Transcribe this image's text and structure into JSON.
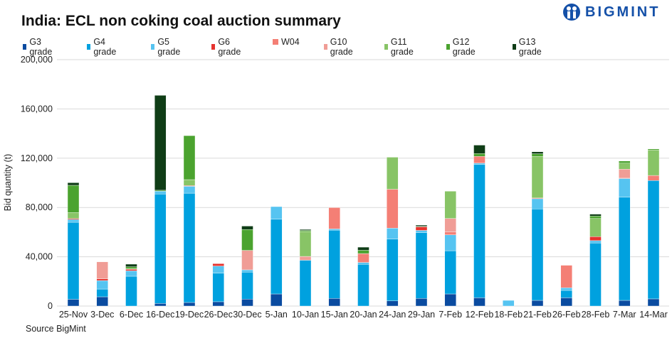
{
  "title": "India: ECL non coking coal auction summary",
  "logo": {
    "text": "BIGMINT"
  },
  "source": "Source BigMint",
  "chart_data": {
    "type": "bar",
    "stacked": true,
    "title": "India: ECL non coking coal auction summary",
    "ylabel": "Bid quantity (t)",
    "xlabel": "",
    "ylim": [
      0,
      200000
    ],
    "yticks": [
      0,
      40000,
      80000,
      120000,
      160000,
      200000
    ],
    "ytick_labels": [
      "0",
      "40,000",
      "80,000",
      "120,000",
      "160,000",
      "200,000"
    ],
    "grid": true,
    "legend_position": "top",
    "categories": [
      "25-Nov",
      "3-Dec",
      "6-Dec",
      "16-Dec",
      "19-Dec",
      "26-Dec",
      "30-Dec",
      "5-Jan",
      "10-Jan",
      "15-Jan",
      "20-Jan",
      "24-Jan",
      "29-Jan",
      "7-Feb",
      "12-Feb",
      "18-Feb",
      "21-Feb",
      "26-Feb",
      "28-Feb",
      "7-Mar",
      "14-Mar"
    ],
    "series": [
      {
        "name": "G3 grade",
        "color": "#0a4ba0",
        "values": [
          5500,
          7500,
          0,
          2100,
          2900,
          3500,
          5600,
          9800,
          0,
          6200,
          0,
          4200,
          6200,
          9800,
          6700,
          0,
          4600,
          6700,
          0,
          4600,
          5800
        ]
      },
      {
        "name": "G4 grade",
        "color": "#00a1df",
        "values": [
          62500,
          6300,
          24200,
          88800,
          88700,
          23200,
          21900,
          60700,
          37200,
          55400,
          33900,
          50100,
          53300,
          35100,
          108100,
          0,
          74200,
          6000,
          51200,
          83700,
          96100
        ]
      },
      {
        "name": "G5 grade",
        "color": "#56c4f1",
        "values": [
          2300,
          6900,
          4400,
          2300,
          5600,
          5800,
          1900,
          10200,
          0,
          1000,
          1500,
          8900,
          1900,
          12900,
          1200,
          4600,
          8300,
          2100,
          1900,
          15200,
          0
        ]
      },
      {
        "name": "G6 grade",
        "color": "#e6332f",
        "values": [
          700,
          1400,
          1200,
          0,
          0,
          1900,
          0,
          0,
          0,
          0,
          0,
          0,
          2900,
          0,
          0,
          0,
          0,
          0,
          3200,
          0,
          0
        ]
      },
      {
        "name": "W04",
        "color": "#f47f75",
        "values": [
          0,
          0,
          0,
          0,
          600,
          0,
          0,
          0,
          0,
          17300,
          7200,
          31600,
          0,
          2300,
          5500,
          0,
          600,
          18300,
          0,
          700,
          4100
        ]
      },
      {
        "name": "G10 grade",
        "color": "#f09d96",
        "values": [
          0,
          13800,
          0,
          0,
          0,
          0,
          15800,
          0,
          3100,
          0,
          0,
          0,
          0,
          11000,
          0,
          0,
          0,
          0,
          0,
          6900,
          0
        ]
      },
      {
        "name": "G11 grade",
        "color": "#88c466",
        "values": [
          4900,
          0,
          700,
          0,
          4800,
          0,
          0,
          0,
          20200,
          0,
          0,
          26000,
          0,
          22100,
          0,
          0,
          33800,
          0,
          14700,
          4900,
          20700
        ]
      },
      {
        "name": "G12 grade",
        "color": "#4ba32f",
        "values": [
          22100,
          0,
          1400,
          800,
          35700,
          0,
          16900,
          0,
          900,
          0,
          2700,
          0,
          400,
          0,
          2300,
          0,
          2100,
          0,
          2100,
          1700,
          800
        ]
      },
      {
        "name": "G13 grade",
        "color": "#0f3d16",
        "values": [
          2100,
          0,
          2100,
          77000,
          0,
          0,
          2800,
          0,
          800,
          0,
          2500,
          0,
          1000,
          0,
          6800,
          0,
          1600,
          0,
          1500,
          0,
          0
        ]
      }
    ]
  }
}
